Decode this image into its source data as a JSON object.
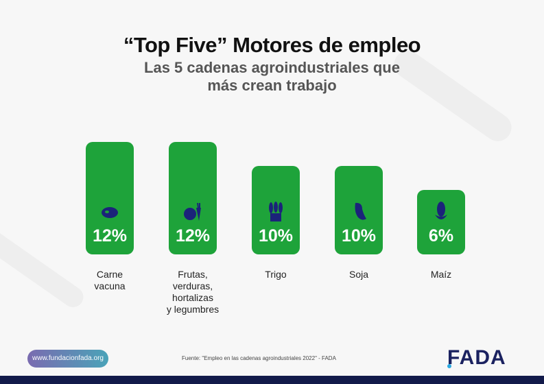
{
  "header": {
    "title": "“Top Five” Motores de empleo",
    "subtitle_line1": "Las 5 cadenas agroindustriales que",
    "subtitle_line2": "más crean trabajo"
  },
  "chart_data": {
    "type": "bar",
    "title": "“Top Five” Motores de empleo",
    "categories": [
      "Carne vacuna",
      "Frutas, verduras, hortalizas y legumbres",
      "Trigo",
      "Soja",
      "Maíz"
    ],
    "category_lines": [
      [
        "Carne",
        "vacuna"
      ],
      [
        "Frutas,",
        "verduras,",
        "hortalizas",
        "y legumbres"
      ],
      [
        "Trigo"
      ],
      [
        "Soja"
      ],
      [
        "Maíz"
      ]
    ],
    "values": [
      12,
      12,
      10,
      10,
      6
    ],
    "labels": [
      "12%",
      "12%",
      "10%",
      "10%",
      "6%"
    ],
    "icons": [
      "steak-icon",
      "apple-carrot-icon",
      "wheat-icon",
      "soy-icon",
      "corn-icon"
    ],
    "bar_color": "#1ea33a",
    "icon_color": "#1b237a"
  },
  "footer": {
    "url": "www.fundacionfada.org",
    "source": "Fuente: \"Empleo en las cadenas agroindustriales 2022\" - FADA",
    "logo": "FADA"
  }
}
